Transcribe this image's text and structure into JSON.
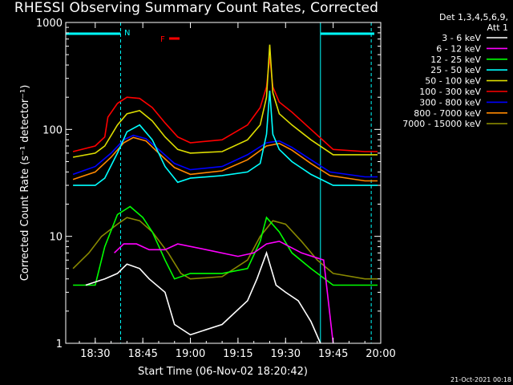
{
  "chart_data": {
    "type": "line",
    "title": "RHESSI Observing Summary Count Rates, Corrected",
    "ylabel": "Corrected Count Rate (s⁻¹ detector⁻¹)",
    "xlabel": "Start Time (06-Nov-02 18:20:42)",
    "ylim": [
      1,
      1000
    ],
    "yscale": "log",
    "xlim_minutes": [
      "18:20:42",
      "20:00:00"
    ],
    "x_ticks": [
      "18:30",
      "18:45",
      "19:00",
      "19:15",
      "19:30",
      "19:45",
      "20:00"
    ],
    "y_ticks": [
      "1",
      "10",
      "100",
      "1000"
    ],
    "legend_header": [
      "Det 1,3,4,5,6,9,",
      "Att 1"
    ],
    "legend_position": "top-right",
    "flags": {
      "N": "N",
      "F": "F"
    },
    "series": [
      {
        "name": "3 - 6 keV",
        "color": "#ffffff",
        "x": [
          "18:27",
          "18:33",
          "18:37",
          "18:40",
          "18:44",
          "18:47",
          "18:52",
          "18:55",
          "19:00",
          "19:10",
          "19:18",
          "19:21",
          "19:24",
          "19:27",
          "19:30",
          "19:34",
          "19:38",
          "19:41"
        ],
        "y": [
          3.5,
          4,
          4.5,
          5.5,
          5,
          4,
          3,
          1.5,
          1.2,
          1.5,
          2.5,
          4,
          7,
          3.5,
          3,
          2.5,
          1.6,
          1
        ]
      },
      {
        "name": "6 - 12 keV",
        "color": "#ff00ff",
        "x": [
          "18:36",
          "18:39",
          "18:43",
          "18:47",
          "18:52",
          "18:56",
          "19:05",
          "19:15",
          "19:20",
          "19:24",
          "19:28",
          "19:35",
          "19:42",
          "19:45"
        ],
        "y": [
          7,
          8.5,
          8.5,
          7.5,
          7.5,
          8.5,
          7.5,
          6.5,
          7,
          8.5,
          9,
          7,
          6,
          1
        ]
      },
      {
        "name": "12 - 25 keV",
        "color": "#00ff00",
        "x": [
          "18:23",
          "18:30",
          "18:33",
          "18:37",
          "18:41",
          "18:45",
          "18:48",
          "18:52",
          "18:55",
          "19:00",
          "19:10",
          "19:18",
          "19:22",
          "19:24",
          "19:28",
          "19:32",
          "19:38",
          "19:45",
          "19:55",
          "19:59"
        ],
        "y": [
          3.5,
          3.5,
          8,
          16,
          19,
          15,
          11,
          6,
          4,
          4.5,
          4.5,
          5,
          9,
          15,
          11,
          7,
          5,
          3.5,
          3.5,
          3.5
        ]
      },
      {
        "name": "25 - 50 keV",
        "color": "#00ffff",
        "x": [
          "18:23",
          "18:30",
          "18:33",
          "18:37",
          "18:40",
          "18:44",
          "18:48",
          "18:52",
          "18:56",
          "19:00",
          "19:10",
          "19:18",
          "19:22",
          "19:24",
          "19:25",
          "19:26",
          "19:28",
          "19:32",
          "19:38",
          "19:45",
          "19:55",
          "19:59"
        ],
        "y": [
          30,
          30,
          35,
          60,
          95,
          110,
          80,
          45,
          32,
          35,
          37,
          40,
          48,
          90,
          230,
          90,
          65,
          50,
          38,
          30,
          30,
          30
        ]
      },
      {
        "name": "50 - 100 keV",
        "color": "#dddd00",
        "x": [
          "18:23",
          "18:30",
          "18:33",
          "18:37",
          "18:40",
          "18:44",
          "18:48",
          "18:52",
          "18:56",
          "19:00",
          "19:10",
          "19:18",
          "19:22",
          "19:24",
          "19:25",
          "19:26",
          "19:28",
          "19:32",
          "19:38",
          "19:45",
          "19:55",
          "19:59"
        ],
        "y": [
          55,
          60,
          70,
          110,
          140,
          150,
          120,
          85,
          65,
          60,
          62,
          80,
          110,
          200,
          620,
          220,
          140,
          110,
          80,
          58,
          58,
          58
        ]
      },
      {
        "name": "100 - 300 keV",
        "color": "#ff0000",
        "x": [
          "18:23",
          "18:30",
          "18:33",
          "18:34",
          "18:37",
          "18:40",
          "18:44",
          "18:48",
          "18:52",
          "18:56",
          "19:00",
          "19:10",
          "19:18",
          "19:22",
          "19:24",
          "19:25",
          "19:26",
          "19:28",
          "19:32",
          "19:38",
          "19:45",
          "19:55",
          "19:59"
        ],
        "y": [
          62,
          70,
          85,
          130,
          175,
          200,
          195,
          160,
          115,
          85,
          75,
          80,
          110,
          160,
          250,
          480,
          250,
          180,
          145,
          100,
          65,
          62,
          62
        ]
      },
      {
        "name": "300 - 800 keV",
        "color": "#0000ff",
        "x": [
          "18:23",
          "18:30",
          "18:35",
          "18:39",
          "18:42",
          "18:46",
          "18:50",
          "18:55",
          "19:00",
          "19:10",
          "19:18",
          "19:24",
          "19:28",
          "19:32",
          "19:38",
          "19:44",
          "19:55",
          "19:59"
        ],
        "y": [
          38,
          45,
          60,
          80,
          88,
          82,
          65,
          48,
          42,
          45,
          58,
          75,
          78,
          68,
          52,
          40,
          36,
          36
        ]
      },
      {
        "name": "800 - 7000 keV",
        "color": "#ff8800",
        "x": [
          "18:23",
          "18:30",
          "18:35",
          "18:39",
          "18:42",
          "18:46",
          "18:50",
          "18:55",
          "19:00",
          "19:10",
          "19:18",
          "19:24",
          "19:28",
          "19:32",
          "19:38",
          "19:44",
          "19:55",
          "19:59"
        ],
        "y": [
          34,
          40,
          55,
          75,
          84,
          78,
          60,
          44,
          38,
          41,
          52,
          70,
          74,
          64,
          48,
          37,
          33,
          33
        ]
      },
      {
        "name": "7000 - 15000 keV",
        "color": "#888800",
        "x": [
          "18:23",
          "18:28",
          "18:32",
          "18:37",
          "18:40",
          "18:44",
          "18:48",
          "18:53",
          "18:57",
          "19:00",
          "19:10",
          "19:18",
          "19:22",
          "19:26",
          "19:30",
          "19:35",
          "19:40",
          "19:45",
          "19:55",
          "19:59"
        ],
        "y": [
          5,
          7,
          10,
          13,
          15,
          14,
          11,
          7,
          4.5,
          4,
          4.2,
          6,
          10,
          14,
          13,
          9,
          6,
          4.5,
          4,
          4
        ]
      }
    ]
  },
  "footer": "21-Oct-2021 00:18"
}
